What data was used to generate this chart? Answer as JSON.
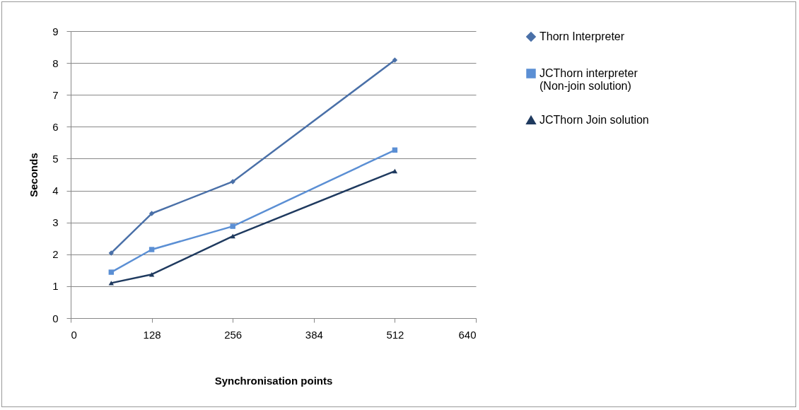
{
  "chart_data": {
    "type": "line",
    "xlabel": "Synchronisation points",
    "ylabel": "Seconds",
    "x": [
      64,
      128,
      256,
      512
    ],
    "series": [
      {
        "name": "Thorn Interpreter",
        "color": "#4a70a8",
        "marker": "diamond",
        "values": [
          2.04,
          3.28,
          4.28,
          8.09
        ]
      },
      {
        "name": "JCThorn  interpreter (Non-join solution)",
        "color": "#5b8fd4",
        "marker": "square",
        "values": [
          1.44,
          2.15,
          2.88,
          5.27
        ]
      },
      {
        "name": "JCThorn Join solution",
        "color": "#1f3a5f",
        "marker": "triangle",
        "values": [
          1.1,
          1.37,
          2.57,
          4.61
        ]
      }
    ],
    "xlim": [
      0,
      640
    ],
    "xticks": [
      0,
      128,
      256,
      384,
      512,
      640
    ],
    "ylim": [
      0,
      9
    ],
    "yticks": [
      0,
      1,
      2,
      3,
      4,
      5,
      6,
      7,
      8,
      9
    ],
    "grid": "y",
    "legend": "right",
    "line_style": "solid"
  }
}
